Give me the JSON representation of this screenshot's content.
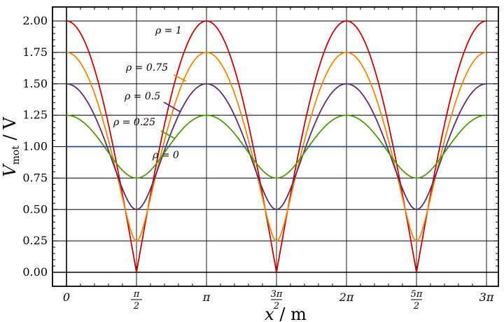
{
  "chart_data": {
    "type": "line",
    "xlabel": "x / m",
    "ylabel": "V_mot / V",
    "xlim": [
      0,
      9.42478
    ],
    "ylim": [
      -0.08,
      2.12
    ],
    "grid": true,
    "x_ticks": [
      {
        "value": 0,
        "label": "0"
      },
      {
        "value": 1.5708,
        "num": "π",
        "den": "2"
      },
      {
        "value": 3.14159,
        "label": "π"
      },
      {
        "value": 4.71239,
        "num": "3π",
        "den": "2"
      },
      {
        "value": 6.28319,
        "label": "2π"
      },
      {
        "value": 7.85398,
        "num": "5π",
        "den": "2"
      },
      {
        "value": 9.42478,
        "label": "3π"
      }
    ],
    "y_ticks": [
      "0.00",
      "0.25",
      "0.50",
      "0.75",
      "1.00",
      "1.25",
      "1.50",
      "1.75",
      "2.00"
    ],
    "series": [
      {
        "name": "ρ = 1",
        "rho": 1,
        "color": "#cc0000"
      },
      {
        "name": "ρ = 0.75",
        "rho": 0.75,
        "color": "#f28500"
      },
      {
        "name": "ρ = 0.5",
        "rho": 0.5,
        "color": "#5b2c6f"
      },
      {
        "name": "ρ = 0.25",
        "rho": 0.25,
        "color": "#4e9a06"
      },
      {
        "name": "ρ = 0",
        "rho": 0,
        "color": "#204a87"
      }
    ]
  }
}
